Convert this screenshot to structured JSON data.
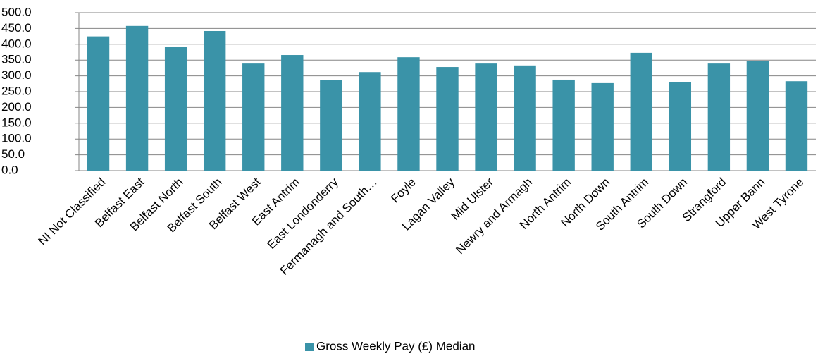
{
  "chart_data": {
    "type": "bar",
    "categories": [
      "NI Not Classified",
      "Belfast East",
      "Belfast North",
      "Belfast South",
      "Belfast West",
      "East Antrim",
      "East Londonderry",
      "Fermanagh and South…",
      "Foyle",
      "Lagan Valley",
      "Mid Ulster",
      "Newry and Armagh",
      "North Antrim",
      "North Down",
      "South Antrim",
      "South Down",
      "Strangford",
      "Upper Bann",
      "West Tyrone"
    ],
    "series": [
      {
        "name": "Gross Weekly Pay (£) Median",
        "color": "#3a93a8",
        "values": [
          425,
          458,
          391,
          442,
          339,
          366,
          286,
          312,
          359,
          328,
          339,
          333,
          288,
          277,
          373,
          281,
          339,
          348,
          283
        ]
      }
    ],
    "ylim": [
      0,
      500
    ],
    "yticks": [
      {
        "value": 0,
        "label": "0.0"
      },
      {
        "value": 50,
        "label": "50.0"
      },
      {
        "value": 100,
        "label": "100.0"
      },
      {
        "value": 150,
        "label": "150.0"
      },
      {
        "value": 200,
        "label": "200.0"
      },
      {
        "value": 250,
        "label": "250.0"
      },
      {
        "value": 300,
        "label": "300.0"
      },
      {
        "value": 350,
        "label": "350.0"
      },
      {
        "value": 400,
        "label": "400.0"
      },
      {
        "value": 450,
        "label": "450.0"
      },
      {
        "value": 500,
        "label": "500.0"
      }
    ],
    "grid": true,
    "legend": "bottom"
  }
}
